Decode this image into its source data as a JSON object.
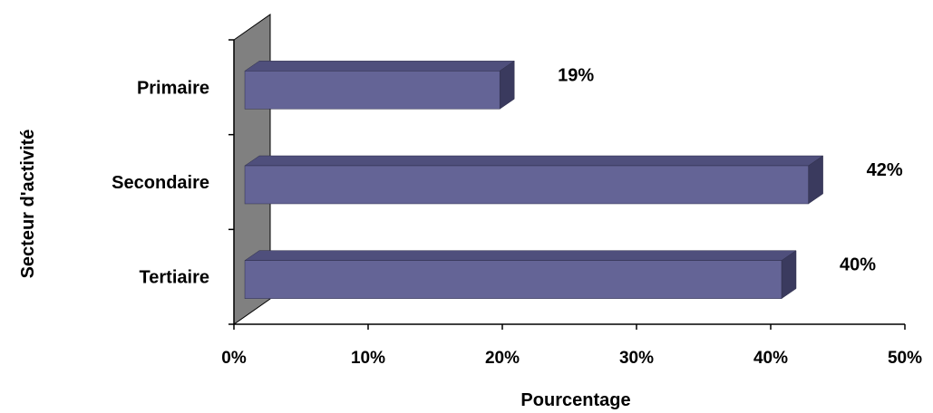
{
  "chart_data": {
    "type": "bar",
    "orientation": "horizontal",
    "title": "",
    "xlabel": "Pourcentage",
    "ylabel": "Secteur d'activité",
    "categories": [
      "Primaire",
      "Secondaire",
      "Tertiaire"
    ],
    "values": [
      19,
      42,
      40
    ],
    "data_labels": [
      "19%",
      "42%",
      "40%"
    ],
    "xlim": [
      0,
      50
    ],
    "xticks": [
      "0%",
      "10%",
      "20%",
      "30%",
      "40%",
      "50%"
    ],
    "grid": false,
    "legend": "none",
    "style": "3d",
    "colors": {
      "bar_front": "#646496",
      "bar_top": "#4f4f7c",
      "bar_side": "#3a3a5e",
      "wall": "#808080"
    }
  }
}
